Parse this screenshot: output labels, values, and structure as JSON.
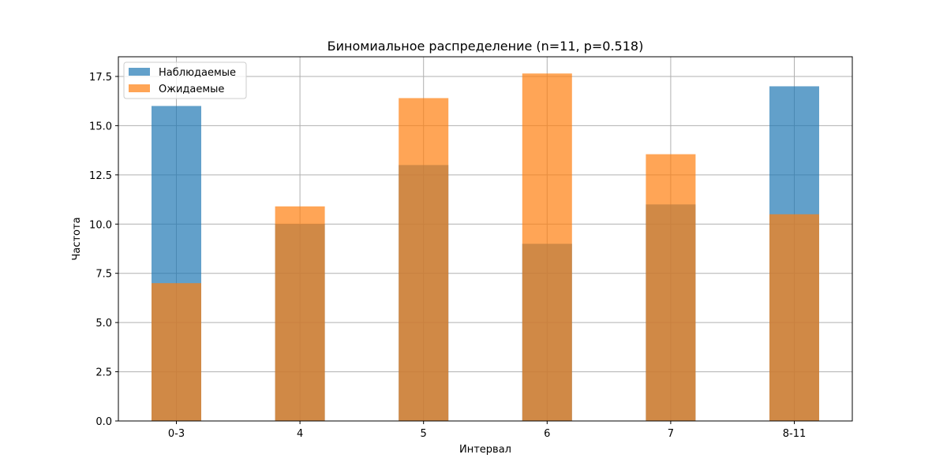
{
  "chart_data": {
    "type": "bar",
    "title": "Биномиальное распределение (n=11, p=0.518)",
    "xlabel": "Интервал",
    "ylabel": "Частота",
    "categories": [
      "0-3",
      "4",
      "5",
      "6",
      "7",
      "8-11"
    ],
    "series": [
      {
        "name": "Наблюдаемые",
        "values": [
          16,
          10,
          13,
          9,
          11,
          17
        ],
        "color": "#1f77b4",
        "opacity": 0.7
      },
      {
        "name": "Ожидаемые",
        "values": [
          7.0,
          10.9,
          16.4,
          17.65,
          13.55,
          10.5
        ],
        "color": "#ff7f0e",
        "opacity": 0.7
      }
    ],
    "ylim": [
      0,
      18.5
    ],
    "yticks": [
      0.0,
      2.5,
      5.0,
      7.5,
      10.0,
      12.5,
      15.0,
      17.5
    ],
    "ytick_labels": [
      "0.0",
      "2.5",
      "5.0",
      "7.5",
      "10.0",
      "12.5",
      "15.0",
      "17.5"
    ],
    "grid": true,
    "legend_position": "top-left"
  }
}
